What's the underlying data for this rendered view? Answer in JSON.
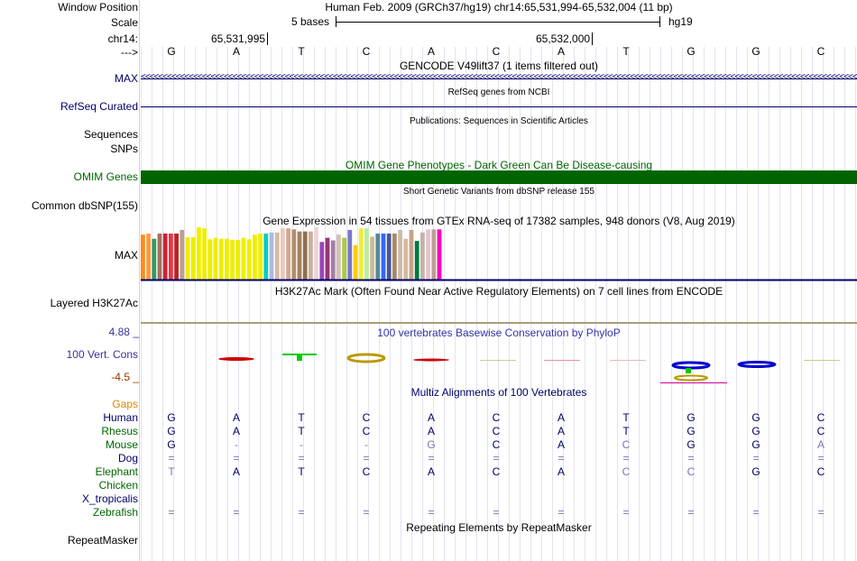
{
  "header": {
    "window_position_label": "Window Position",
    "window_position_value": "Human Feb. 2009 (GRCh37/hg19)   chr14:65,531,994-65,532,004 (11 bp)",
    "scale_label": "Scale",
    "scale_text": "5 bases",
    "scale_assembly": "hg19",
    "chrom_label": "chr14:",
    "coord1": "65,531,995",
    "coord2": "65,532,000",
    "strand_label": "--->",
    "sequence": [
      "G",
      "A",
      "T",
      "C",
      "A",
      "C",
      "A",
      "T",
      "G",
      "G",
      "C"
    ]
  },
  "tracks": {
    "gencode": {
      "label": "MAX",
      "title": "GENCODE V49lift37 (1 items filtered out)",
      "arrow": "<"
    },
    "refseq": {
      "label": "RefSeq Curated",
      "title": "RefSeq genes from NCBI"
    },
    "publications": {
      "title": "Publications: Sequences in Scientific Articles"
    },
    "sequences": {
      "label": "Sequences"
    },
    "snps": {
      "label": "SNPs"
    },
    "omim": {
      "label": "OMIM Genes",
      "title": "OMIM Gene Phenotypes - Dark Green Can Be Disease-causing",
      "color": "#006400"
    },
    "dbsnp": {
      "title": "Short Genetic Variants from dbSNP release 155",
      "label": "Common dbSNP(155)"
    },
    "gtex": {
      "title": "Gene Expression in 54 tissues from GTEx RNA-seq of 17382 samples, 948 donors (V8, Aug 2019)",
      "label": "MAX"
    },
    "h3k27ac": {
      "title": "H3K27Ac Mark (Often Found Near Active Regulatory Elements) on 7 cell lines from ENCODE",
      "label": "Layered H3K27Ac"
    },
    "phylop": {
      "title": "100 vertebrates Basewise Conservation by PhyloP",
      "label": "100 Vert. Cons",
      "max_label": "4.88 _",
      "min_label": "-4.5 _"
    },
    "multiz": {
      "title": "Multiz Alignments of 100 Vertebrates",
      "gaps_label": "Gaps",
      "species": [
        {
          "name": "Human",
          "color": "#000066",
          "bases": [
            "G",
            "A",
            "T",
            "C",
            "A",
            "C",
            "A",
            "T",
            "G",
            "G",
            "C"
          ]
        },
        {
          "name": "Rhesus",
          "color": "#006600",
          "bases": [
            "G",
            "A",
            "T",
            "C",
            "A",
            "C",
            "A",
            "T",
            "G",
            "G",
            "C"
          ]
        },
        {
          "name": "Mouse",
          "color": "#006600",
          "bases": [
            "G",
            "-",
            "-",
            "-",
            "G",
            "C",
            "A",
            "C",
            "G",
            "G",
            "A"
          ]
        },
        {
          "name": "Dog",
          "color": "#000066",
          "bases": [
            "=",
            "=",
            "=",
            "=",
            "=",
            "=",
            "=",
            "=",
            "=",
            "=",
            "="
          ]
        },
        {
          "name": "Elephant",
          "color": "#006600",
          "bases": [
            "T",
            "A",
            "T",
            "C",
            "A",
            "C",
            "A",
            "C",
            "C",
            "G",
            "C"
          ]
        },
        {
          "name": "Chicken",
          "color": "#006600",
          "bases": [
            "",
            "",
            "",
            "",
            "",
            "",
            "",
            "",
            "",
            "",
            ""
          ]
        },
        {
          "name": "X_tropicalis",
          "color": "#000066",
          "bases": [
            "",
            "",
            "",
            "",
            "",
            "",
            "",
            "",
            "",
            "",
            ""
          ]
        },
        {
          "name": "Zebrafish",
          "color": "#006600",
          "bases": [
            "=",
            "=",
            "=",
            "=",
            "=",
            "=",
            "=",
            "=",
            "=",
            "=",
            "="
          ]
        }
      ]
    },
    "repeatmasker": {
      "title": "Repeating Elements by RepeatMasker",
      "label": "RepeatMasker"
    }
  },
  "chart_data": {
    "type": "bar",
    "title": "Gene Expression in 54 tissues from GTEx RNA-seq of 17382 samples, 948 donors (V8, Aug 2019)",
    "ylabel": "MAX",
    "ylim": [
      0,
      1
    ],
    "values": [
      0.86,
      0.88,
      0.78,
      0.88,
      0.88,
      0.88,
      0.88,
      0.95,
      0.81,
      0.81,
      1.0,
      0.98,
      0.77,
      0.8,
      0.78,
      0.78,
      0.76,
      0.76,
      0.8,
      0.77,
      0.86,
      0.88,
      0.88,
      0.9,
      0.9,
      0.98,
      0.98,
      0.96,
      0.92,
      0.92,
      0.92,
      1.0,
      0.72,
      0.8,
      0.75,
      0.86,
      0.8,
      0.95,
      0.66,
      0.98,
      0.98,
      0.82,
      0.88,
      0.88,
      0.88,
      0.88,
      0.95,
      0.78,
      0.95,
      0.74,
      0.9,
      0.96,
      0.96,
      0.96
    ],
    "colors": [
      "#FF8C1A",
      "#FF9A40",
      "#339966",
      "#A07458",
      "#CC2233",
      "#EE3344",
      "#BB2222",
      "#BBA090",
      "#EEEE00",
      "#EEEE00",
      "#EEEE00",
      "#EEEE00",
      "#EEEE00",
      "#EEEE00",
      "#EEEE00",
      "#EEEE00",
      "#EEEE00",
      "#EEEE00",
      "#EEEE00",
      "#EEEE00",
      "#EEEE00",
      "#EEEE00",
      "#00CCCC",
      "#AABBDD",
      "#D9B8A8",
      "#E8C8B8",
      "#D0A890",
      "#B09070",
      "#A58060",
      "#907050",
      "#C8B0A0",
      "#EED4D4",
      "#9944BB",
      "#993377",
      "#A080A0",
      "#D4C0B8",
      "#AACC44",
      "#7777CC",
      "#FFCC00",
      "#EEEE33",
      "#BBEE99",
      "#CCBB99",
      "#558899",
      "#3366FF",
      "#445599",
      "#AA8866",
      "#CCBBAA",
      "#D8B89C",
      "#C4A488",
      "#007744",
      "#C4B4A4",
      "#E8C0D0",
      "#B9A090",
      "#FF00BB"
    ]
  }
}
